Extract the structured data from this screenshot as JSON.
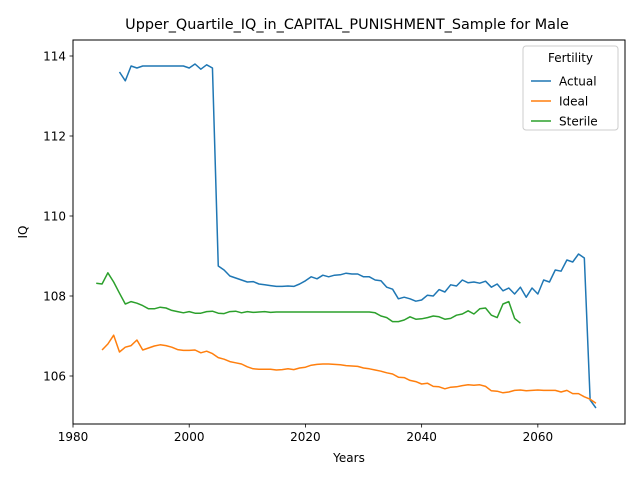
{
  "chart_data": {
    "type": "line",
    "title": "Upper_Quartile_IQ_in_CAPITAL_PUNISHMENT_Sample for Male",
    "xlabel": "Years",
    "ylabel": "IQ",
    "xlim": [
      1980,
      2075
    ],
    "ylim": [
      104.8,
      114.4
    ],
    "xticks": [
      1980,
      2000,
      2020,
      2040,
      2060
    ],
    "yticks": [
      106,
      108,
      110,
      112,
      114
    ],
    "grid": false,
    "legend": {
      "title": "Fertility",
      "placement": "top-right"
    },
    "series": [
      {
        "name": "Actual",
        "color": "#1f77b4",
        "points": [
          [
            1988,
            113.6
          ],
          [
            1989,
            113.38
          ],
          [
            1990,
            113.75
          ],
          [
            1991,
            113.7
          ],
          [
            1992,
            113.75
          ],
          [
            1993,
            113.75
          ],
          [
            1994,
            113.75
          ],
          [
            1995,
            113.75
          ],
          [
            1996,
            113.75
          ],
          [
            1997,
            113.75
          ],
          [
            1998,
            113.75
          ],
          [
            1999,
            113.75
          ],
          [
            2000,
            113.7
          ],
          [
            2001,
            113.8
          ],
          [
            2002,
            113.67
          ],
          [
            2003,
            113.78
          ],
          [
            2004,
            113.7
          ],
          [
            2005,
            108.75
          ],
          [
            2006,
            108.65
          ],
          [
            2007,
            108.5
          ],
          [
            2008,
            108.45
          ],
          [
            2009,
            108.4
          ],
          [
            2010,
            108.35
          ],
          [
            2011,
            108.36
          ],
          [
            2012,
            108.3
          ],
          [
            2013,
            108.28
          ],
          [
            2014,
            108.26
          ],
          [
            2015,
            108.24
          ],
          [
            2016,
            108.24
          ],
          [
            2017,
            108.25
          ],
          [
            2018,
            108.24
          ],
          [
            2019,
            108.3
          ],
          [
            2020,
            108.38
          ],
          [
            2021,
            108.48
          ],
          [
            2022,
            108.43
          ],
          [
            2023,
            108.52
          ],
          [
            2024,
            108.48
          ],
          [
            2025,
            108.52
          ],
          [
            2026,
            108.53
          ],
          [
            2027,
            108.57
          ],
          [
            2028,
            108.55
          ],
          [
            2029,
            108.55
          ],
          [
            2030,
            108.48
          ],
          [
            2031,
            108.48
          ],
          [
            2032,
            108.4
          ],
          [
            2033,
            108.38
          ],
          [
            2034,
            108.22
          ],
          [
            2035,
            108.17
          ],
          [
            2036,
            107.93
          ],
          [
            2037,
            107.97
          ],
          [
            2038,
            107.93
          ],
          [
            2039,
            107.87
          ],
          [
            2040,
            107.9
          ],
          [
            2041,
            108.02
          ],
          [
            2042,
            108.0
          ],
          [
            2043,
            108.16
          ],
          [
            2044,
            108.1
          ],
          [
            2045,
            108.28
          ],
          [
            2046,
            108.25
          ],
          [
            2047,
            108.4
          ],
          [
            2048,
            108.33
          ],
          [
            2049,
            108.35
          ],
          [
            2050,
            108.32
          ],
          [
            2051,
            108.37
          ],
          [
            2052,
            108.22
          ],
          [
            2053,
            108.3
          ],
          [
            2054,
            108.13
          ],
          [
            2055,
            108.2
          ],
          [
            2056,
            108.05
          ],
          [
            2057,
            108.22
          ],
          [
            2058,
            107.97
          ],
          [
            2059,
            108.2
          ],
          [
            2060,
            108.05
          ],
          [
            2061,
            108.4
          ],
          [
            2062,
            108.35
          ],
          [
            2063,
            108.65
          ],
          [
            2064,
            108.62
          ],
          [
            2065,
            108.9
          ],
          [
            2066,
            108.85
          ],
          [
            2067,
            109.05
          ],
          [
            2068,
            108.95
          ],
          [
            2069,
            105.4
          ],
          [
            2070,
            105.2
          ]
        ]
      },
      {
        "name": "Ideal",
        "color": "#ff7f0e",
        "points": [
          [
            1985,
            106.65
          ],
          [
            1986,
            106.8
          ],
          [
            1987,
            107.02
          ],
          [
            1988,
            106.6
          ],
          [
            1989,
            106.72
          ],
          [
            1990,
            106.76
          ],
          [
            1991,
            106.9
          ],
          [
            1992,
            106.65
          ],
          [
            1993,
            106.7
          ],
          [
            1994,
            106.75
          ],
          [
            1995,
            106.78
          ],
          [
            1996,
            106.76
          ],
          [
            1997,
            106.72
          ],
          [
            1998,
            106.66
          ],
          [
            1999,
            106.64
          ],
          [
            2000,
            106.64
          ],
          [
            2001,
            106.65
          ],
          [
            2002,
            106.58
          ],
          [
            2003,
            106.62
          ],
          [
            2004,
            106.56
          ],
          [
            2005,
            106.46
          ],
          [
            2006,
            106.42
          ],
          [
            2007,
            106.36
          ],
          [
            2008,
            106.33
          ],
          [
            2009,
            106.3
          ],
          [
            2010,
            106.23
          ],
          [
            2011,
            106.18
          ],
          [
            2012,
            106.17
          ],
          [
            2013,
            106.17
          ],
          [
            2014,
            106.17
          ],
          [
            2015,
            106.15
          ],
          [
            2016,
            106.16
          ],
          [
            2017,
            106.18
          ],
          [
            2018,
            106.16
          ],
          [
            2019,
            106.2
          ],
          [
            2020,
            106.22
          ],
          [
            2021,
            106.27
          ],
          [
            2022,
            106.29
          ],
          [
            2023,
            106.3
          ],
          [
            2024,
            106.3
          ],
          [
            2025,
            106.29
          ],
          [
            2026,
            106.28
          ],
          [
            2027,
            106.26
          ],
          [
            2028,
            106.25
          ],
          [
            2029,
            106.24
          ],
          [
            2030,
            106.2
          ],
          [
            2031,
            106.18
          ],
          [
            2032,
            106.15
          ],
          [
            2033,
            106.12
          ],
          [
            2034,
            106.08
          ],
          [
            2035,
            106.05
          ],
          [
            2036,
            105.97
          ],
          [
            2037,
            105.96
          ],
          [
            2038,
            105.89
          ],
          [
            2039,
            105.86
          ],
          [
            2040,
            105.8
          ],
          [
            2041,
            105.82
          ],
          [
            2042,
            105.74
          ],
          [
            2043,
            105.73
          ],
          [
            2044,
            105.68
          ],
          [
            2045,
            105.72
          ],
          [
            2046,
            105.73
          ],
          [
            2047,
            105.76
          ],
          [
            2048,
            105.78
          ],
          [
            2049,
            105.77
          ],
          [
            2050,
            105.78
          ],
          [
            2051,
            105.74
          ],
          [
            2052,
            105.63
          ],
          [
            2053,
            105.62
          ],
          [
            2054,
            105.58
          ],
          [
            2055,
            105.6
          ],
          [
            2056,
            105.64
          ],
          [
            2057,
            105.65
          ],
          [
            2058,
            105.63
          ],
          [
            2059,
            105.64
          ],
          [
            2060,
            105.65
          ],
          [
            2061,
            105.64
          ],
          [
            2062,
            105.64
          ],
          [
            2063,
            105.64
          ],
          [
            2064,
            105.6
          ],
          [
            2065,
            105.64
          ],
          [
            2066,
            105.56
          ],
          [
            2067,
            105.56
          ],
          [
            2068,
            105.48
          ],
          [
            2069,
            105.42
          ],
          [
            2070,
            105.32
          ]
        ]
      },
      {
        "name": "Sterile",
        "color": "#2ca02c",
        "points": [
          [
            1984,
            108.32
          ],
          [
            1985,
            108.3
          ],
          [
            1986,
            108.58
          ],
          [
            1987,
            108.35
          ],
          [
            1988,
            108.07
          ],
          [
            1989,
            107.8
          ],
          [
            1990,
            107.86
          ],
          [
            1991,
            107.82
          ],
          [
            1992,
            107.76
          ],
          [
            1993,
            107.68
          ],
          [
            1994,
            107.68
          ],
          [
            1995,
            107.72
          ],
          [
            1996,
            107.7
          ],
          [
            1997,
            107.64
          ],
          [
            1998,
            107.61
          ],
          [
            1999,
            107.58
          ],
          [
            2000,
            107.61
          ],
          [
            2001,
            107.57
          ],
          [
            2002,
            107.57
          ],
          [
            2003,
            107.61
          ],
          [
            2004,
            107.62
          ],
          [
            2005,
            107.57
          ],
          [
            2006,
            107.56
          ],
          [
            2007,
            107.61
          ],
          [
            2008,
            107.62
          ],
          [
            2009,
            107.58
          ],
          [
            2010,
            107.61
          ],
          [
            2011,
            107.59
          ],
          [
            2012,
            107.6
          ],
          [
            2013,
            107.61
          ],
          [
            2014,
            107.59
          ],
          [
            2015,
            107.6
          ],
          [
            2016,
            107.6
          ],
          [
            2017,
            107.6
          ],
          [
            2018,
            107.6
          ],
          [
            2019,
            107.6
          ],
          [
            2020,
            107.6
          ],
          [
            2021,
            107.6
          ],
          [
            2022,
            107.6
          ],
          [
            2023,
            107.6
          ],
          [
            2024,
            107.6
          ],
          [
            2025,
            107.6
          ],
          [
            2026,
            107.6
          ],
          [
            2027,
            107.6
          ],
          [
            2028,
            107.6
          ],
          [
            2029,
            107.6
          ],
          [
            2030,
            107.6
          ],
          [
            2031,
            107.6
          ],
          [
            2032,
            107.58
          ],
          [
            2033,
            107.5
          ],
          [
            2034,
            107.46
          ],
          [
            2035,
            107.36
          ],
          [
            2036,
            107.36
          ],
          [
            2037,
            107.4
          ],
          [
            2038,
            107.48
          ],
          [
            2039,
            107.42
          ],
          [
            2040,
            107.43
          ],
          [
            2041,
            107.46
          ],
          [
            2042,
            107.5
          ],
          [
            2043,
            107.48
          ],
          [
            2044,
            107.42
          ],
          [
            2045,
            107.44
          ],
          [
            2046,
            107.52
          ],
          [
            2047,
            107.55
          ],
          [
            2048,
            107.63
          ],
          [
            2049,
            107.55
          ],
          [
            2050,
            107.68
          ],
          [
            2051,
            107.7
          ],
          [
            2052,
            107.52
          ],
          [
            2053,
            107.46
          ],
          [
            2054,
            107.8
          ],
          [
            2055,
            107.86
          ],
          [
            2056,
            107.44
          ],
          [
            2057,
            107.32
          ]
        ]
      }
    ]
  }
}
